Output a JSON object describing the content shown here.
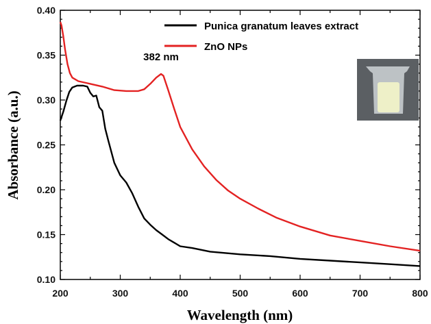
{
  "chart_data": {
    "type": "line",
    "title": "",
    "xlabel": "Wavelength (nm)",
    "ylabel": "Absorbance (a.u.)",
    "xlim": [
      200,
      800
    ],
    "ylim": [
      0.1,
      0.4
    ],
    "x_ticks": [
      "200",
      "300",
      "400",
      "500",
      "600",
      "700",
      "800"
    ],
    "y_ticks": [
      "0.10",
      "0.15",
      "0.20",
      "0.25",
      "0.30",
      "0.35",
      "0.40"
    ],
    "x_tick_values": [
      200,
      300,
      400,
      500,
      600,
      700,
      800
    ],
    "y_tick_values": [
      0.1,
      0.15,
      0.2,
      0.25,
      0.3,
      0.35,
      0.4
    ],
    "grid": false,
    "legend_position": "top-right",
    "annotations": [
      {
        "text": "382 nm",
        "x": 368,
        "y": 0.335
      }
    ],
    "series": [
      {
        "name": "Punica granatum leaves extract",
        "color": "#000000",
        "points": [
          [
            200,
            0.277
          ],
          [
            205,
            0.287
          ],
          [
            210,
            0.299
          ],
          [
            215,
            0.309
          ],
          [
            220,
            0.314
          ],
          [
            228,
            0.316
          ],
          [
            238,
            0.316
          ],
          [
            245,
            0.315
          ],
          [
            250,
            0.308
          ],
          [
            255,
            0.304
          ],
          [
            260,
            0.305
          ],
          [
            265,
            0.292
          ],
          [
            270,
            0.288
          ],
          [
            275,
            0.268
          ],
          [
            280,
            0.255
          ],
          [
            290,
            0.23
          ],
          [
            300,
            0.216
          ],
          [
            310,
            0.208
          ],
          [
            320,
            0.196
          ],
          [
            330,
            0.181
          ],
          [
            340,
            0.168
          ],
          [
            350,
            0.161
          ],
          [
            360,
            0.155
          ],
          [
            370,
            0.15
          ],
          [
            380,
            0.145
          ],
          [
            390,
            0.141
          ],
          [
            400,
            0.137
          ],
          [
            420,
            0.135
          ],
          [
            450,
            0.131
          ],
          [
            500,
            0.128
          ],
          [
            550,
            0.126
          ],
          [
            600,
            0.123
          ],
          [
            650,
            0.121
          ],
          [
            700,
            0.119
          ],
          [
            750,
            0.117
          ],
          [
            800,
            0.115
          ]
        ]
      },
      {
        "name": "ZnO NPs",
        "color": "#e32222",
        "points": [
          [
            200,
            0.387
          ],
          [
            202,
            0.383
          ],
          [
            205,
            0.371
          ],
          [
            208,
            0.356
          ],
          [
            212,
            0.34
          ],
          [
            216,
            0.33
          ],
          [
            220,
            0.325
          ],
          [
            230,
            0.321
          ],
          [
            250,
            0.318
          ],
          [
            270,
            0.315
          ],
          [
            290,
            0.311
          ],
          [
            310,
            0.31
          ],
          [
            330,
            0.31
          ],
          [
            340,
            0.312
          ],
          [
            350,
            0.318
          ],
          [
            360,
            0.325
          ],
          [
            368,
            0.329
          ],
          [
            372,
            0.327
          ],
          [
            380,
            0.311
          ],
          [
            390,
            0.29
          ],
          [
            400,
            0.27
          ],
          [
            420,
            0.245
          ],
          [
            440,
            0.226
          ],
          [
            460,
            0.211
          ],
          [
            480,
            0.199
          ],
          [
            500,
            0.19
          ],
          [
            530,
            0.179
          ],
          [
            560,
            0.169
          ],
          [
            600,
            0.159
          ],
          [
            650,
            0.149
          ],
          [
            700,
            0.143
          ],
          [
            750,
            0.137
          ],
          [
            800,
            0.132
          ]
        ]
      }
    ]
  },
  "inset": {
    "icon": "vial-photo-icon",
    "colors": {
      "background": "#5b5f63",
      "tube": "#cfd3d6",
      "powder": "#eef0c8"
    }
  }
}
